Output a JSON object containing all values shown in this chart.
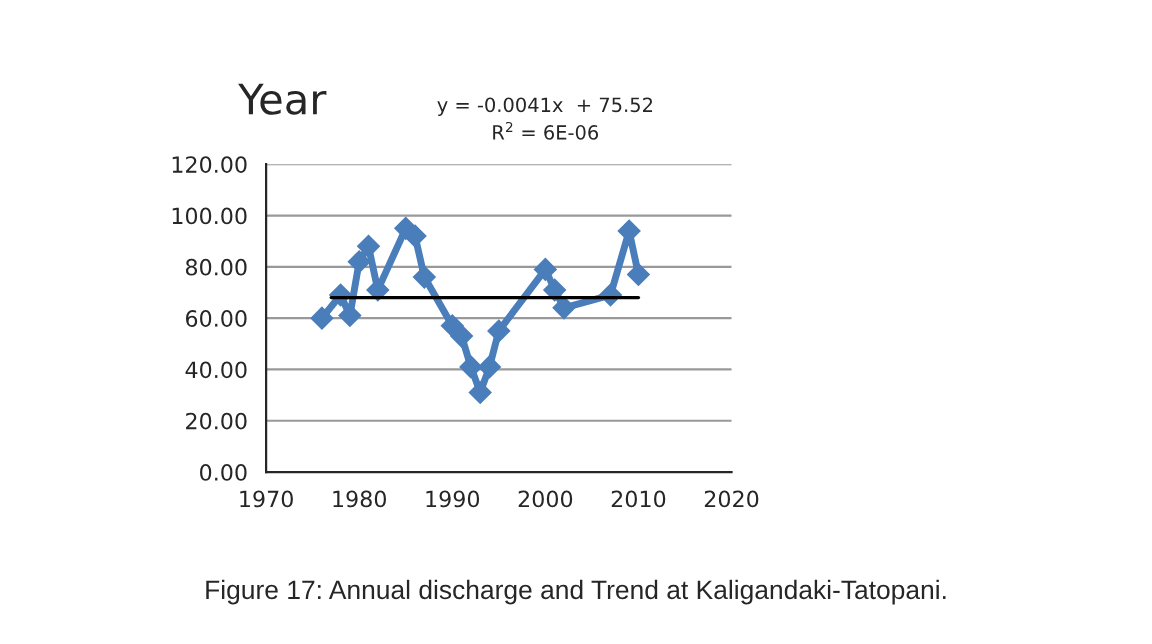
{
  "chart_data": {
    "type": "line",
    "title": "Year",
    "annotations": [
      "y = -0.0041x  + 75.52",
      "R$^{2}$ = 6E-06",
      "Figure 17: Annual discharge and Trend at Kaligandaki-Tatopani."
    ],
    "series": [
      {
        "color": "#4a7ebb",
        "marker": "diamond",
        "x": [
          1976,
          1978,
          1979,
          1980,
          1981,
          1982,
          1985,
          1986,
          1987,
          1990,
          1991,
          1992,
          1993,
          1994,
          1995,
          2000,
          2001,
          2002,
          2007,
          2009,
          2010
        ],
        "values": [
          60,
          69,
          61,
          82,
          88,
          71,
          95,
          92,
          76,
          57,
          53,
          41,
          31,
          41,
          55,
          79,
          71,
          64,
          69,
          94,
          77
        ]
      },
      {
        "color": "#000000",
        "marker": "none",
        "x": [
          1977,
          2010
        ],
        "values": [
          68,
          68
        ]
      }
    ],
    "xlim": [
      1970,
      2020
    ],
    "xticks": [
      1970,
      1980,
      1990,
      2000,
      2010,
      2020
    ],
    "ylim": [
      0,
      120
    ],
    "yticks": [
      {
        "value": 0,
        "label": "0.00"
      },
      {
        "value": 20,
        "label": "20.00"
      },
      {
        "value": 40,
        "label": "40.00"
      },
      {
        "value": 60,
        "label": "60.00"
      },
      {
        "value": 80,
        "label": "80.00"
      },
      {
        "value": 100,
        "label": "100.00"
      },
      {
        "value": 120,
        "label": "120.00"
      }
    ],
    "grid": "y",
    "line_style": "solid"
  }
}
